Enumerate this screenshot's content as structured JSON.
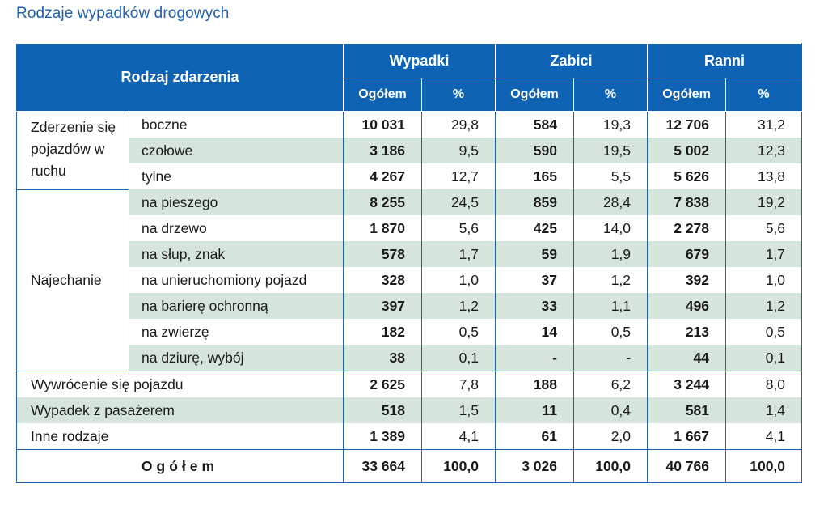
{
  "title": "Rodzaje wypadków drogowych",
  "header": {
    "row_label": "Rodzaj zdarzenia",
    "groups": [
      "Wypadki",
      "Zabici",
      "Ranni"
    ],
    "sub": [
      "Ogółem",
      "%",
      "Ogółem",
      "%",
      "Ogółem",
      "%"
    ]
  },
  "groups": {
    "collision": "Zderzenie się pojazdów w ruchu",
    "hitting": "Najechanie"
  },
  "rows": [
    {
      "label": "boczne",
      "vals": [
        "10 031",
        "29,8",
        "584",
        "19,3",
        "12 706",
        "31,2"
      ]
    },
    {
      "label": "czołowe",
      "vals": [
        "3 186",
        "9,5",
        "590",
        "19,5",
        "5 002",
        "12,3"
      ]
    },
    {
      "label": "tylne",
      "vals": [
        "4 267",
        "12,7",
        "165",
        "5,5",
        "5 626",
        "13,8"
      ]
    },
    {
      "label": "na pieszego",
      "vals": [
        "8 255",
        "24,5",
        "859",
        "28,4",
        "7 838",
        "19,2"
      ]
    },
    {
      "label": "na drzewo",
      "vals": [
        "1 870",
        "5,6",
        "425",
        "14,0",
        "2 278",
        "5,6"
      ]
    },
    {
      "label": "na słup, znak",
      "vals": [
        "578",
        "1,7",
        "59",
        "1,9",
        "679",
        "1,7"
      ]
    },
    {
      "label": "na unieruchomiony pojazd",
      "vals": [
        "328",
        "1,0",
        "37",
        "1,2",
        "392",
        "1,0"
      ]
    },
    {
      "label": "na barierę ochronną",
      "vals": [
        "397",
        "1,2",
        "33",
        "1,1",
        "496",
        "1,2"
      ]
    },
    {
      "label": "na zwierzę",
      "vals": [
        "182",
        "0,5",
        "14",
        "0,5",
        "213",
        "0,5"
      ]
    },
    {
      "label": "na dziurę, wybój",
      "vals": [
        "38",
        "0,1",
        "-",
        "-",
        "44",
        "0,1"
      ]
    },
    {
      "label": "Wywrócenie się pojazdu",
      "vals": [
        "2 625",
        "7,8",
        "188",
        "6,2",
        "3 244",
        "8,0"
      ]
    },
    {
      "label": "Wypadek z pasażerem",
      "vals": [
        "518",
        "1,5",
        "11",
        "0,4",
        "581",
        "1,4"
      ]
    },
    {
      "label": "Inne rodzaje",
      "vals": [
        "1 389",
        "4,1",
        "61",
        "2,0",
        "1 667",
        "4,1"
      ]
    }
  ],
  "total": {
    "label": "Ogółem",
    "vals": [
      "33 664",
      "100,0",
      "3 026",
      "100,0",
      "40 766",
      "100,0"
    ]
  }
}
